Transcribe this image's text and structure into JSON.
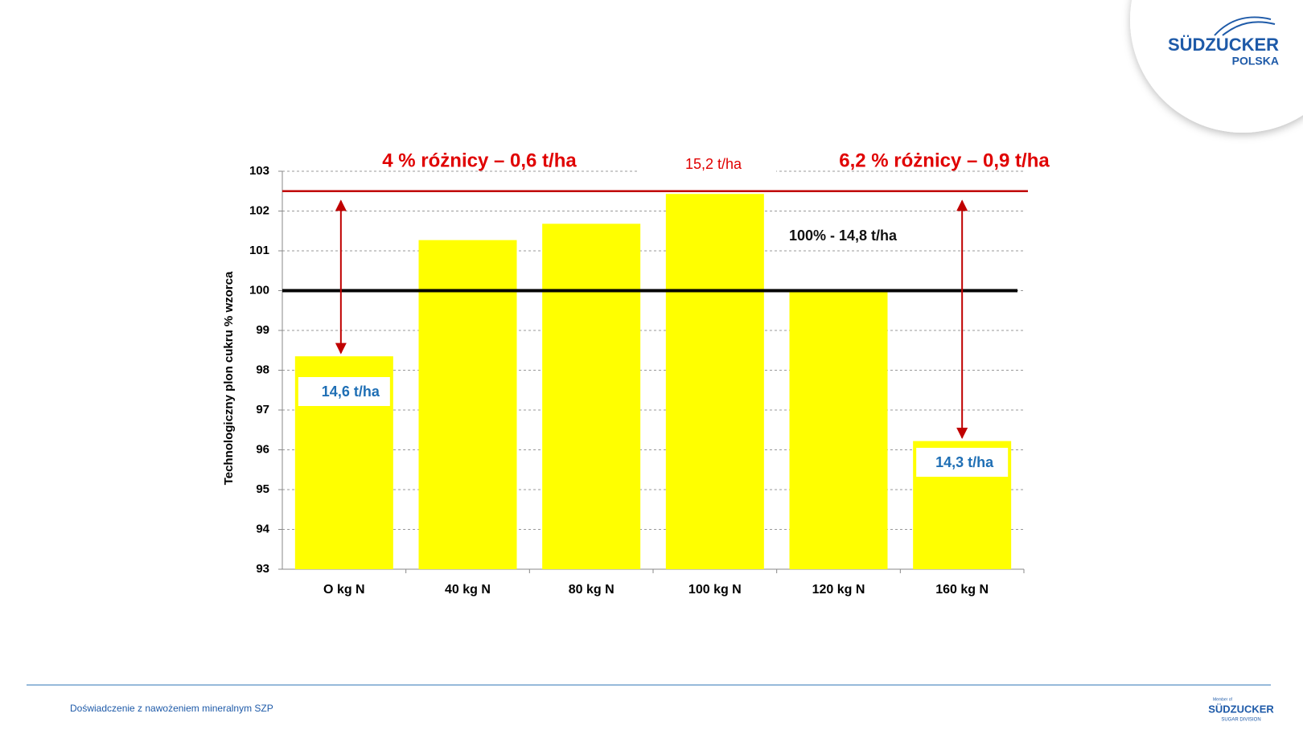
{
  "logo": {
    "name": "SÜDZUCKER",
    "sub": "POLSKA"
  },
  "footer": {
    "text": "Doświadczenie z nawożeniem mineralnym SZP",
    "logo_top": "Member of",
    "logo_name": "SÜDZUCKER",
    "logo_sub": "SUGAR DIVISION"
  },
  "chart_data": {
    "type": "bar",
    "y_label": "Technologiczny plon cukru % wzorca",
    "categories": [
      "O kg N",
      "40 kg N",
      "80 kg N",
      "100 kg N",
      "120 kg N",
      "160 kg N"
    ],
    "values": [
      98.35,
      101.27,
      101.68,
      102.43,
      100.0,
      96.22
    ],
    "color": "#ffff00",
    "ylim": [
      93,
      103
    ],
    "yticks": [
      93,
      94,
      95,
      96,
      97,
      98,
      99,
      100,
      101,
      102,
      103
    ],
    "grid": true,
    "reference_lines": [
      {
        "value": 100,
        "color": "#000000"
      },
      {
        "value": 102.5,
        "color": "#c00000"
      }
    ],
    "annotations": [
      "4 % różnicy – 0,6 t/ha",
      "15,2 t/ha",
      "6,2 % różnicy – 0,9 t/ha",
      "100% - 14,8 t/ha",
      "14,6 t/ha",
      "14,3 t/ha"
    ]
  }
}
